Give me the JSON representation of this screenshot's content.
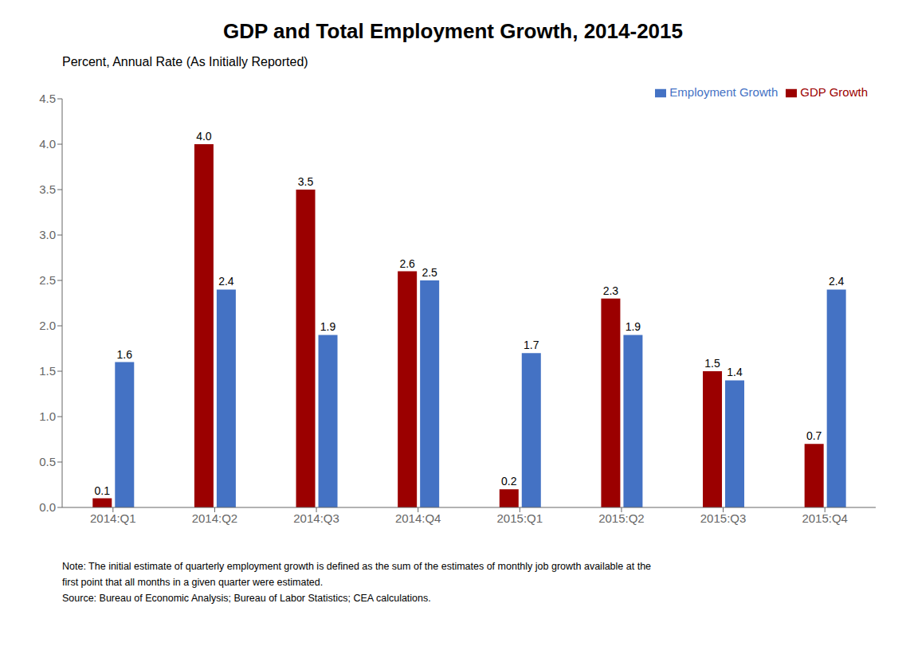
{
  "chart_data": {
    "type": "bar",
    "title": "GDP and Total Employment Growth, 2014-2015",
    "subtitle": "Percent, Annual Rate (As Initially  Reported)",
    "categories": [
      "2014:Q1",
      "2014:Q2",
      "2014:Q3",
      "2014:Q4",
      "2015:Q1",
      "2015:Q2",
      "2015:Q3",
      "2015:Q4"
    ],
    "series": [
      {
        "name": "GDP Growth",
        "color": "#9B0000",
        "values": [
          0.1,
          4.0,
          3.5,
          2.6,
          0.2,
          2.3,
          1.5,
          0.7
        ],
        "value_labels": [
          "0.1",
          "4.0",
          "3.5",
          "2.6",
          "0.2",
          "2.3",
          "1.5",
          "0.7"
        ]
      },
      {
        "name": "Employment Growth",
        "color": "#4472C4",
        "values": [
          1.6,
          2.4,
          1.9,
          2.5,
          1.7,
          1.9,
          1.4,
          2.4
        ]
      }
    ],
    "ylim": [
      0,
      4.5
    ],
    "yticks": [
      {
        "value": 0,
        "label": "0.0"
      },
      0.5,
      {
        "value": 1,
        "label": "1.0"
      },
      1.5,
      {
        "value": 2,
        "label": "2.0"
      },
      2.5,
      {
        "value": 3,
        "label": "3.0"
      },
      3.5,
      {
        "value": 4,
        "label": "4.0"
      },
      4.5
    ],
    "grid": false,
    "legend": "upper right",
    "data_labels": true,
    "annotations": [
      "Note: The initial estimate of quarterly employment growth is defined as the sum of the estimates of monthly job growth available at the",
      "first point that all months in a given quarter were estimated.",
      "Source: Bureau of Economic Analysis; Bureau of Labor Statistics; CEA calculations."
    ]
  }
}
